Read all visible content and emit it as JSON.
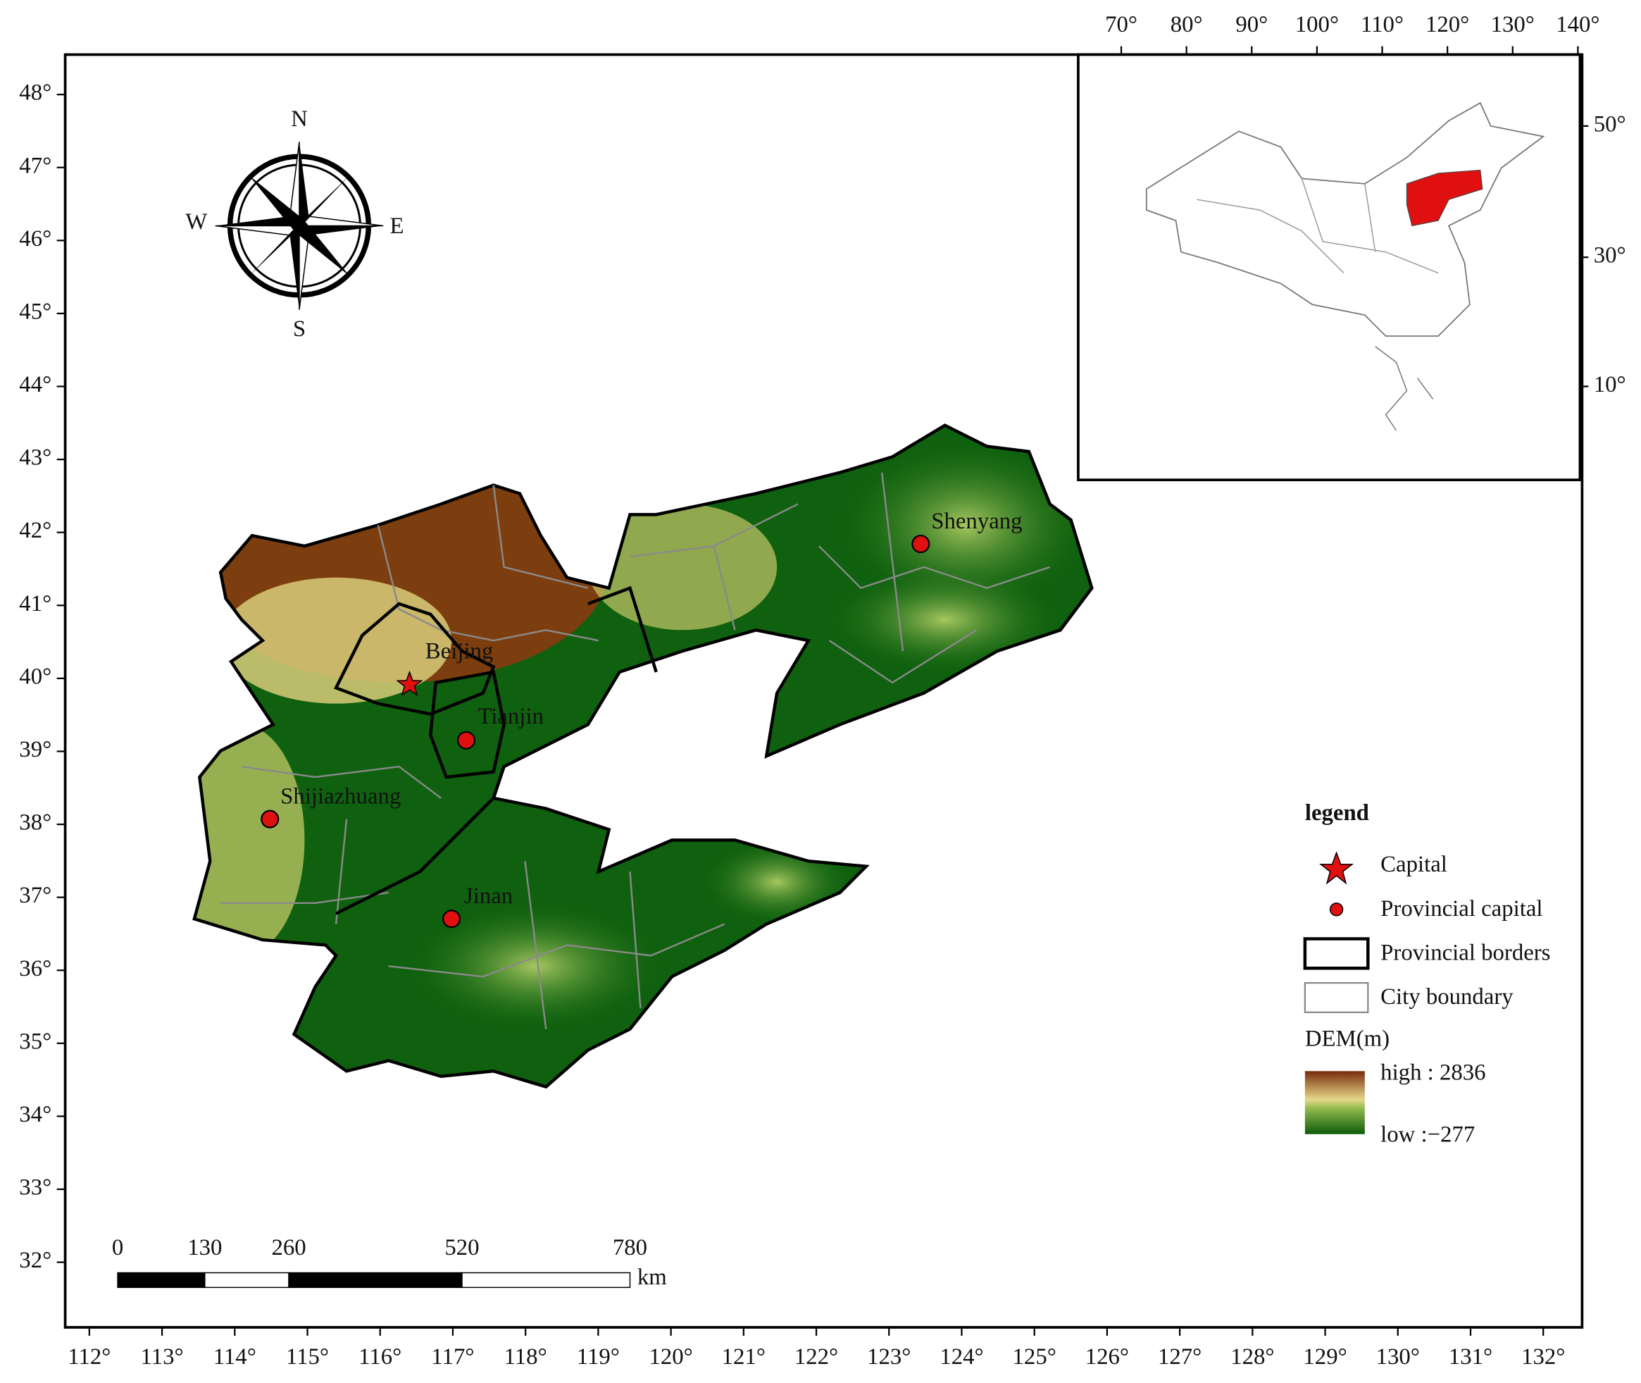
{
  "map": {
    "lon_labels": [
      "112°",
      "113°",
      "114°",
      "115°",
      "116°",
      "117°",
      "118°",
      "119°",
      "120°",
      "121°",
      "122°",
      "123°",
      "124°",
      "125°",
      "126°",
      "127°",
      "128°",
      "129°",
      "130°",
      "131°",
      "132°"
    ],
    "lat_labels": [
      "48°",
      "47°",
      "46°",
      "45°",
      "44°",
      "43°",
      "42°",
      "41°",
      "40°",
      "39°",
      "38°",
      "37°",
      "36°",
      "35°",
      "34°",
      "33°",
      "32°"
    ],
    "compass": {
      "north": "N",
      "south": "S",
      "east": "E",
      "west": "W"
    },
    "cities": [
      "Beijing",
      "Tianjin",
      "Shijiazhuang",
      "Jinan",
      "Shenyang"
    ],
    "scale_bar": {
      "labels": [
        "0",
        "130",
        "260",
        "520",
        "780"
      ],
      "unit": "km"
    }
  },
  "inset": {
    "lon_labels": [
      "70°",
      "80°",
      "90°",
      "100°",
      "110°",
      "120°",
      "130°",
      "140°"
    ],
    "lat_labels": [
      "50°",
      "30°",
      "10°"
    ]
  },
  "legend": {
    "title": "legend",
    "items": [
      "Capital",
      "Provincial capital",
      "Provincial borders",
      "City boundary"
    ],
    "dem_title": "DEM(m)",
    "dem_high": "high : 2836",
    "dem_low": "low :−277"
  }
}
